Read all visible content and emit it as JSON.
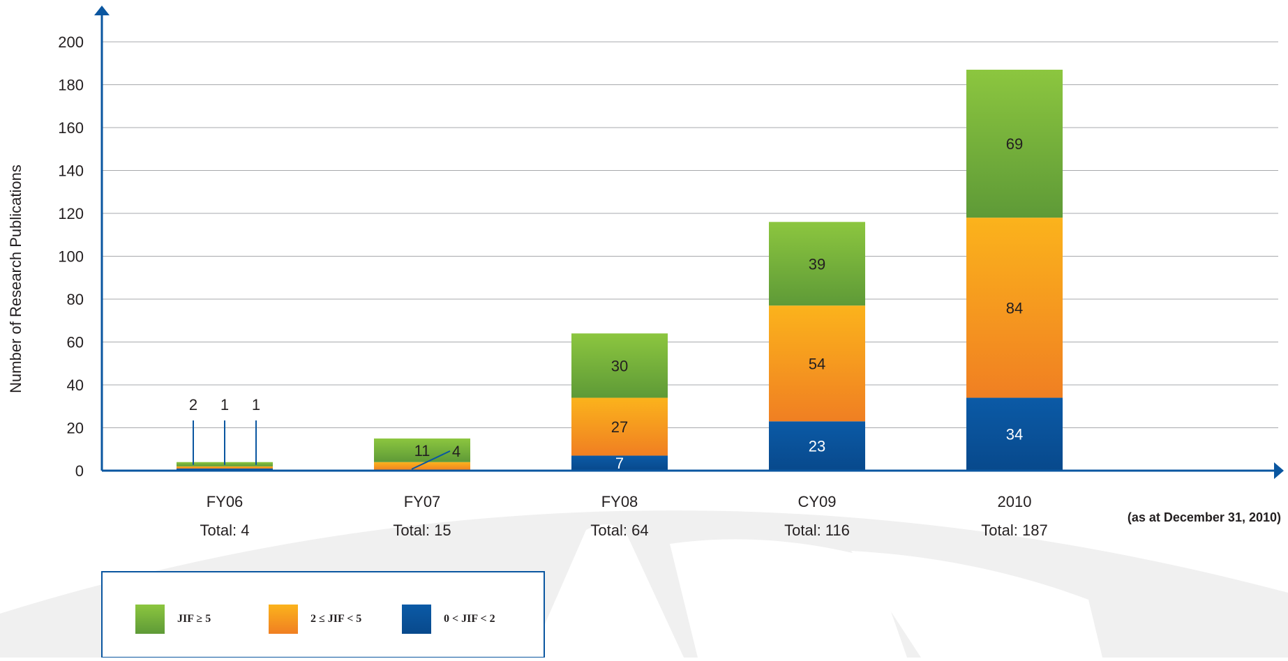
{
  "chart_data": {
    "type": "bar",
    "stacked": true,
    "ylabel": "Number of Research Publications",
    "ylim": [
      0,
      200
    ],
    "yticks": [
      0,
      20,
      40,
      60,
      80,
      100,
      120,
      140,
      160,
      180,
      200
    ],
    "grid": true,
    "categories": [
      "FY06",
      "FY07",
      "FY08",
      "CY09",
      "2010"
    ],
    "totals": [
      "Total: 4",
      "Total: 15",
      "Total: 64",
      "Total: 116",
      "Total: 187"
    ],
    "series": [
      {
        "name": "0 < JIF < 2",
        "values": [
          1,
          0,
          7,
          23,
          34
        ],
        "color": "#0a56a0"
      },
      {
        "name": "2 ≤ JIF < 5",
        "values": [
          1,
          4,
          27,
          54,
          84
        ],
        "color": "#f5921e"
      },
      {
        "name": "JIF ≥ 5",
        "values": [
          2,
          11,
          30,
          39,
          69
        ],
        "color": "#7ab648"
      }
    ],
    "note": "(as at December 31, 2010)",
    "legend_position": "bottom-left"
  }
}
